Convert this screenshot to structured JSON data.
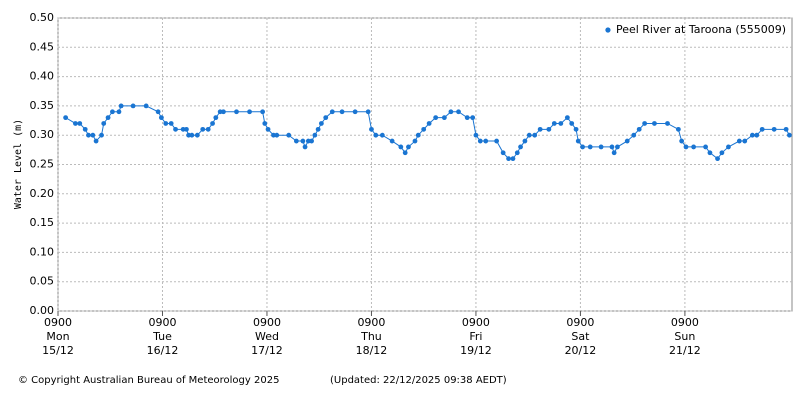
{
  "chart_data": {
    "type": "line",
    "ylabel": "Water Level (m)",
    "legend_position": "upper right",
    "grid": true,
    "ylim": [
      0,
      0.5
    ],
    "yticks": [
      {
        "value": 0,
        "label": "0.00"
      },
      {
        "value": 0.05,
        "label": "0.05"
      },
      {
        "value": 0.1,
        "label": "0.10"
      },
      {
        "value": 0.15,
        "label": "0.15"
      },
      {
        "value": 0.2,
        "label": "0.20"
      },
      {
        "value": 0.25,
        "label": "0.25"
      },
      {
        "value": 0.3,
        "label": "0.30"
      },
      {
        "value": 0.35,
        "label": "0.35"
      },
      {
        "value": 0.4,
        "label": "0.40"
      },
      {
        "value": 0.45,
        "label": "0.45"
      },
      {
        "value": 0.5,
        "label": "0.50"
      }
    ],
    "xlim": [
      "15/12 0900",
      "22/12 0936"
    ],
    "xticks": [
      {
        "value": "15/12 0900",
        "label": [
          "0900",
          "Mon",
          "15/12"
        ]
      },
      {
        "value": "16/12 0900",
        "label": [
          "0900",
          "Tue",
          "16/12"
        ]
      },
      {
        "value": "17/12 0900",
        "label": [
          "0900",
          "Wed",
          "17/12"
        ]
      },
      {
        "value": "18/12 0900",
        "label": [
          "0900",
          "Thu",
          "18/12"
        ]
      },
      {
        "value": "19/12 0900",
        "label": [
          "0900",
          "Fri",
          "19/12"
        ]
      },
      {
        "value": "20/12 0900",
        "label": [
          "0900",
          "Sat",
          "20/12"
        ]
      },
      {
        "value": "21/12 0900",
        "label": [
          "0900",
          "Sun",
          "21/12"
        ]
      }
    ],
    "x": [
      "15/12 1045",
      "15/12 1300",
      "15/12 1400",
      "15/12 1515",
      "15/12 1600",
      "15/12 1700",
      "15/12 1745",
      "15/12 1900",
      "15/12 1930",
      "15/12 2030",
      "15/12 2130",
      "15/12 2300",
      "15/12 2330",
      "16/12 0215",
      "16/12 0515",
      "16/12 0800",
      "16/12 0845",
      "16/12 0945",
      "16/12 1100",
      "16/12 1200",
      "16/12 1345",
      "16/12 1430",
      "16/12 1500",
      "16/12 1545",
      "16/12 1700",
      "16/12 1815",
      "16/12 1930",
      "16/12 2030",
      "16/12 2115",
      "16/12 2215",
      "16/12 2300",
      "17/12 0200",
      "17/12 0500",
      "17/12 0800",
      "17/12 0830",
      "17/12 0915",
      "17/12 1030",
      "17/12 1115",
      "17/12 1400",
      "17/12 1545",
      "17/12 1715",
      "17/12 1745",
      "17/12 1830",
      "17/12 1915",
      "17/12 2000",
      "17/12 2045",
      "17/12 2130",
      "17/12 2230",
      "18/12 0000",
      "18/12 0215",
      "18/12 0515",
      "18/12 0815",
      "18/12 0900",
      "18/12 1000",
      "18/12 1130",
      "18/12 1345",
      "18/12 1545",
      "18/12 1645",
      "18/12 1730",
      "18/12 1900",
      "18/12 1945",
      "18/12 2100",
      "18/12 2215",
      "18/12 2345",
      "19/12 0145",
      "19/12 0315",
      "19/12 0500",
      "19/12 0700",
      "19/12 0815",
      "19/12 0900",
      "19/12 1000",
      "19/12 1115",
      "19/12 1345",
      "19/12 1515",
      "19/12 1630",
      "19/12 1730",
      "19/12 1830",
      "19/12 1915",
      "19/12 2015",
      "19/12 2115",
      "19/12 2230",
      "19/12 2345",
      "20/12 0145",
      "20/12 0300",
      "20/12 0430",
      "20/12 0600",
      "20/12 0700",
      "20/12 0800",
      "20/12 0830",
      "20/12 0930",
      "20/12 1115",
      "20/12 1345",
      "20/12 1615",
      "20/12 1645",
      "20/12 1730",
      "20/12 1945",
      "20/12 2115",
      "20/12 2230",
      "20/12 2345",
      "21/12 0200",
      "21/12 0500",
      "21/12 0730",
      "21/12 0815",
      "21/12 0915",
      "21/12 1100",
      "21/12 1345",
      "21/12 1445",
      "21/12 1630",
      "21/12 1730",
      "21/12 1900",
      "21/12 2130",
      "21/12 2245",
      "22/12 0030",
      "22/12 0130",
      "22/12 0245",
      "22/12 0530",
      "22/12 0815",
      "22/12 0900"
    ],
    "series": [
      {
        "name": "Peel River at Taroona (555009)",
        "color": "#1a75d2",
        "values": [
          0.33,
          0.32,
          0.32,
          0.31,
          0.3,
          0.3,
          0.29,
          0.3,
          0.32,
          0.33,
          0.34,
          0.34,
          0.35,
          0.35,
          0.35,
          0.34,
          0.33,
          0.32,
          0.32,
          0.31,
          0.31,
          0.31,
          0.3,
          0.3,
          0.3,
          0.31,
          0.31,
          0.32,
          0.33,
          0.34,
          0.34,
          0.34,
          0.34,
          0.34,
          0.32,
          0.31,
          0.3,
          0.3,
          0.3,
          0.29,
          0.29,
          0.28,
          0.29,
          0.29,
          0.3,
          0.31,
          0.32,
          0.33,
          0.34,
          0.34,
          0.34,
          0.34,
          0.31,
          0.3,
          0.3,
          0.29,
          0.28,
          0.27,
          0.28,
          0.29,
          0.3,
          0.31,
          0.32,
          0.33,
          0.33,
          0.34,
          0.34,
          0.33,
          0.33,
          0.3,
          0.29,
          0.29,
          0.29,
          0.27,
          0.26,
          0.26,
          0.27,
          0.28,
          0.29,
          0.3,
          0.3,
          0.31,
          0.31,
          0.32,
          0.32,
          0.33,
          0.32,
          0.31,
          0.29,
          0.28,
          0.28,
          0.28,
          0.28,
          0.27,
          0.28,
          0.29,
          0.3,
          0.31,
          0.32,
          0.32,
          0.32,
          0.31,
          0.29,
          0.28,
          0.28,
          0.28,
          0.27,
          0.26,
          0.27,
          0.28,
          0.29,
          0.29,
          0.3,
          0.3,
          0.31,
          0.31,
          0.31,
          0.3
        ]
      }
    ]
  },
  "footer": {
    "copyright": "© Copyright Australian Bureau of Meteorology 2025",
    "updated": "(Updated: 22/12/2025 09:38 AEDT)"
  }
}
